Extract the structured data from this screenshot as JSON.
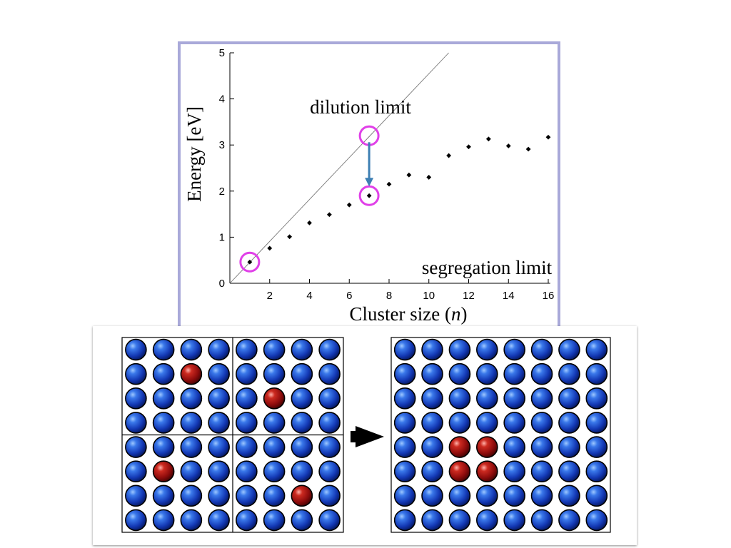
{
  "chart_data": {
    "type": "scatter",
    "xlabel": "Cluster size (n)",
    "xlabel_main": "Cluster size (",
    "xlabel_var": "n",
    "xlabel_close": ")",
    "ylabel": "Energy [eV]",
    "xlim": [
      0,
      16
    ],
    "ylim": [
      0,
      5
    ],
    "xticks": [
      2,
      4,
      6,
      8,
      10,
      12,
      14,
      16
    ],
    "yticks": [
      0,
      1,
      2,
      3,
      4,
      5
    ],
    "series": [
      {
        "x": [
          1,
          2,
          3,
          4,
          5,
          6,
          7,
          8,
          9,
          10,
          11,
          12,
          13,
          14,
          15,
          16
        ],
        "y": [
          0.46,
          0.76,
          1.01,
          1.31,
          1.49,
          1.7,
          1.9,
          2.15,
          2.35,
          2.3,
          2.77,
          2.96,
          3.13,
          2.98,
          2.91,
          3.17
        ]
      }
    ],
    "reference_line": {
      "x": [
        0,
        11
      ],
      "y": [
        0,
        5
      ]
    },
    "annotations": {
      "dilution": "dilution limit",
      "segregation": "segregation limit"
    },
    "highlights": [
      {
        "x": 1,
        "y": 0.46
      },
      {
        "x": 7,
        "y": 3.2
      },
      {
        "x": 7,
        "y": 1.9
      }
    ],
    "arrow": {
      "from": [
        7,
        3.2
      ],
      "to": [
        7,
        1.9
      ]
    }
  },
  "lattices": {
    "left": {
      "rows": 8,
      "cols": 8,
      "dividers": true,
      "solutes": [
        [
          1,
          2
        ],
        [
          2,
          5
        ],
        [
          5,
          1
        ],
        [
          6,
          6
        ]
      ]
    },
    "right": {
      "rows": 8,
      "cols": 8,
      "dividers": false,
      "solutes": [
        [
          4,
          2
        ],
        [
          4,
          3
        ],
        [
          5,
          2
        ],
        [
          5,
          3
        ]
      ]
    }
  },
  "colors": {
    "frame": "#a9a9d9",
    "highlight": "#e040e8",
    "arrow": "#3d7fb3",
    "host_atom": "#1540c0",
    "solute_atom": "#a01010"
  }
}
